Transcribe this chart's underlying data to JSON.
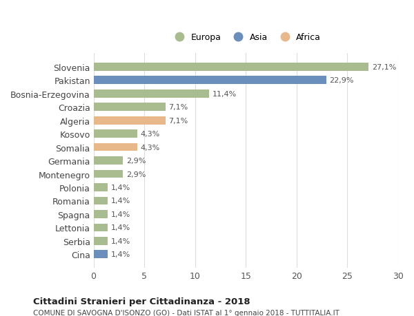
{
  "categories": [
    "Cina",
    "Serbia",
    "Lettonia",
    "Spagna",
    "Romania",
    "Polonia",
    "Montenegro",
    "Germania",
    "Somalia",
    "Kosovo",
    "Algeria",
    "Croazia",
    "Bosnia-Erzegovina",
    "Pakistan",
    "Slovenia"
  ],
  "values": [
    1.4,
    1.4,
    1.4,
    1.4,
    1.4,
    1.4,
    2.9,
    2.9,
    4.3,
    4.3,
    7.1,
    7.1,
    11.4,
    22.9,
    27.1
  ],
  "labels": [
    "1,4%",
    "1,4%",
    "1,4%",
    "1,4%",
    "1,4%",
    "1,4%",
    "2,9%",
    "2,9%",
    "4,3%",
    "4,3%",
    "7,1%",
    "7,1%",
    "11,4%",
    "22,9%",
    "27,1%"
  ],
  "continent": [
    "Asia",
    "Europa",
    "Europa",
    "Europa",
    "Europa",
    "Europa",
    "Europa",
    "Europa",
    "Africa",
    "Europa",
    "Africa",
    "Europa",
    "Europa",
    "Asia",
    "Europa"
  ],
  "colors": {
    "Europa": "#a8bc8f",
    "Asia": "#6b8fbd",
    "Africa": "#e8b88a"
  },
  "xlim": [
    0,
    30
  ],
  "xticks": [
    0,
    5,
    10,
    15,
    20,
    25,
    30
  ],
  "title1": "Cittadini Stranieri per Cittadinanza - 2018",
  "title2": "COMUNE DI SAVOGNA D'ISONZO (GO) - Dati ISTAT al 1° gennaio 2018 - TUTTITALIA.IT",
  "legend_labels": [
    "Europa",
    "Asia",
    "Africa"
  ],
  "legend_colors": [
    "#a8bc8f",
    "#6b8fbd",
    "#e8b88a"
  ],
  "background_color": "#ffffff",
  "grid_color": "#dddddd",
  "bar_height": 0.6
}
